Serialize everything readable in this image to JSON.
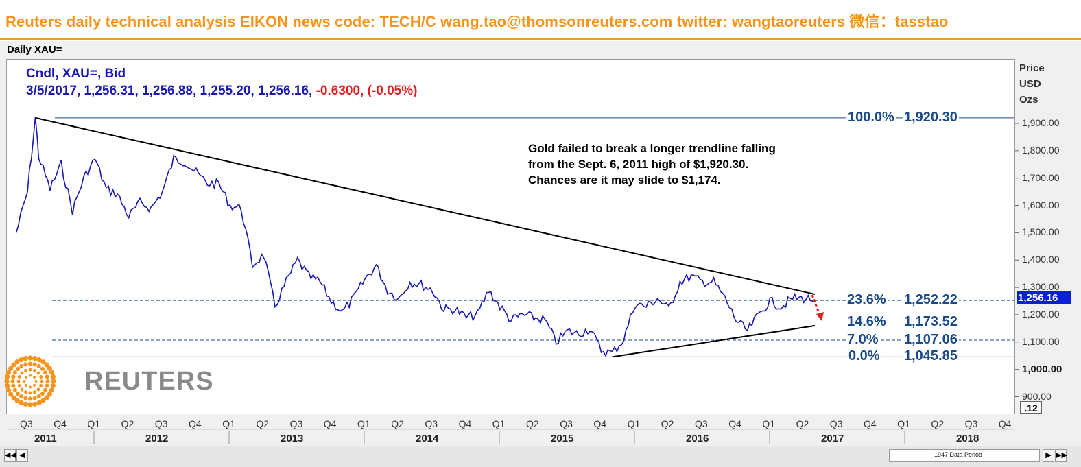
{
  "header": {
    "banner": "Reuters daily technical analysis  EIKON news code: TECH/C  wang.tao@thomsonreuters.com  twitter:  wangtaoreuters   微信：tasstao"
  },
  "panel": {
    "title": "Daily XAU=",
    "info_line1": "Cndl, XAU=, Bid",
    "info_line2_values": "3/5/2017, 1,256.31, 1,256.88, 1,255.20, 1,256.16,",
    "info_line2_change": "-0.6300, (-0.05%)",
    "decimals": ".12",
    "period_text": "1947 Data Period"
  },
  "logo": {
    "text": "REUTERS"
  },
  "colors": {
    "banner": "#f7941d",
    "candles": "#1a1ab3",
    "fib": "#1a4a8a",
    "last_price_bg": "#0a1fd8",
    "down_arrow": "#e02020"
  },
  "chart_data": {
    "type": "line",
    "series": [
      {
        "name": "XAU=",
        "x": [
          "2011-07",
          "2011-08",
          "2011-09-06",
          "2011-09",
          "2011-10",
          "2011-11",
          "2011-12",
          "2012-01",
          "2012-02",
          "2012-03",
          "2012-04",
          "2012-05",
          "2012-06",
          "2012-07",
          "2012-08",
          "2012-09",
          "2012-10",
          "2012-11",
          "2012-12",
          "2013-01",
          "2013-02",
          "2013-03",
          "2013-04",
          "2013-05",
          "2013-06",
          "2013-07",
          "2013-08",
          "2013-09",
          "2013-10",
          "2013-11",
          "2013-12",
          "2014-01",
          "2014-02",
          "2014-03",
          "2014-04",
          "2014-05",
          "2014-06",
          "2014-07",
          "2014-08",
          "2014-09",
          "2014-10",
          "2014-11",
          "2014-12",
          "2015-01",
          "2015-02",
          "2015-03",
          "2015-04",
          "2015-05",
          "2015-06",
          "2015-07",
          "2015-08",
          "2015-09",
          "2015-10",
          "2015-11",
          "2015-12",
          "2016-01",
          "2016-02",
          "2016-03",
          "2016-04",
          "2016-05",
          "2016-06",
          "2016-07",
          "2016-08",
          "2016-09",
          "2016-10",
          "2016-11",
          "2016-12",
          "2017-01",
          "2017-02",
          "2017-03",
          "2017-04",
          "2017-05",
          "2017-06"
        ],
        "values": [
          1500,
          1650,
          1920,
          1780,
          1660,
          1750,
          1580,
          1700,
          1770,
          1660,
          1640,
          1560,
          1610,
          1590,
          1650,
          1770,
          1760,
          1720,
          1680,
          1680,
          1600,
          1590,
          1380,
          1420,
          1230,
          1320,
          1400,
          1340,
          1320,
          1250,
          1210,
          1260,
          1330,
          1380,
          1290,
          1260,
          1320,
          1310,
          1290,
          1220,
          1220,
          1190,
          1200,
          1290,
          1230,
          1180,
          1200,
          1190,
          1180,
          1100,
          1140,
          1130,
          1150,
          1070,
          1060,
          1110,
          1240,
          1230,
          1260,
          1220,
          1320,
          1340,
          1320,
          1320,
          1260,
          1180,
          1140,
          1200,
          1250,
          1230,
          1260,
          1260,
          1256
        ]
      }
    ],
    "last_price": "1,256.16",
    "ylabel": "Price USD Ozs",
    "ylim": [
      850,
      1990
    ],
    "y_ticks": [
      "900.00",
      "1,000.00",
      "1,100.00",
      "1,200.00",
      "1,300.00",
      "1,400.00",
      "1,500.00",
      "1,600.00",
      "1,700.00",
      "1,800.00",
      "1,900.00"
    ],
    "quarter_labels": [
      "Q3",
      "Q4",
      "Q1",
      "Q2",
      "Q3",
      "Q4",
      "Q1",
      "Q2",
      "Q3",
      "Q4",
      "Q1",
      "Q2",
      "Q3",
      "Q4",
      "Q1",
      "Q2",
      "Q3",
      "Q4",
      "Q1",
      "Q2",
      "Q3",
      "Q4",
      "Q1",
      "Q2",
      "Q3",
      "Q4",
      "Q1",
      "Q2",
      "Q3",
      "Q4"
    ],
    "year_labels": [
      "2011",
      "2012",
      "2013",
      "2014",
      "2015",
      "2016",
      "2017",
      "2018"
    ],
    "fibonacci": [
      {
        "pct": "100.0%",
        "value": "1,920.30",
        "level": 1920.3
      },
      {
        "pct": "23.6%",
        "value": "1,252.22",
        "level": 1252.22
      },
      {
        "pct": "14.6%",
        "value": "1,173.52",
        "level": 1173.52
      },
      {
        "pct": "7.0%",
        "value": "1,107.06",
        "level": 1107.06
      },
      {
        "pct": "0.0%",
        "value": "1,045.85",
        "level": 1045.85
      }
    ],
    "trendlines": [
      {
        "name": "falling resistance",
        "from": [
          "2011-09-06",
          1920.3
        ],
        "to": [
          "2017-06",
          1275
        ]
      },
      {
        "name": "rising support",
        "from": [
          "2015-12",
          1045.85
        ],
        "to": [
          "2017-06",
          1160
        ]
      }
    ],
    "annotation": [
      "Gold failed to break a longer trendline falling",
      "from the Sept. 6, 2011 high of $1,920.30.",
      "Chances are it  may slide to $1,174."
    ]
  }
}
